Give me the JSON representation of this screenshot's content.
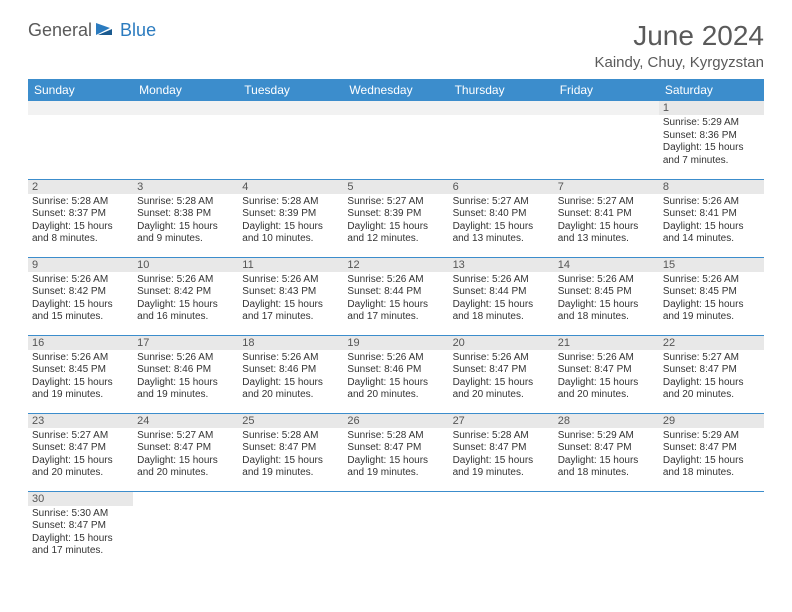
{
  "logo": {
    "general": "General",
    "blue": "Blue"
  },
  "title": "June 2024",
  "location": "Kaindy, Chuy, Kyrgyzstan",
  "colors": {
    "header_bg": "#3c8dcc",
    "header_fg": "#ffffff",
    "daynum_bg": "#e8e8e8",
    "border": "#3c8dcc",
    "text": "#333333",
    "title_color": "#5a5a5a",
    "logo_blue": "#2b7bbf"
  },
  "weekdays": [
    "Sunday",
    "Monday",
    "Tuesday",
    "Wednesday",
    "Thursday",
    "Friday",
    "Saturday"
  ],
  "weeks": [
    [
      null,
      null,
      null,
      null,
      null,
      null,
      {
        "n": "1",
        "sr": "5:29 AM",
        "ss": "8:36 PM",
        "dl": "15 hours and 7 minutes."
      }
    ],
    [
      {
        "n": "2",
        "sr": "5:28 AM",
        "ss": "8:37 PM",
        "dl": "15 hours and 8 minutes."
      },
      {
        "n": "3",
        "sr": "5:28 AM",
        "ss": "8:38 PM",
        "dl": "15 hours and 9 minutes."
      },
      {
        "n": "4",
        "sr": "5:28 AM",
        "ss": "8:39 PM",
        "dl": "15 hours and 10 minutes."
      },
      {
        "n": "5",
        "sr": "5:27 AM",
        "ss": "8:39 PM",
        "dl": "15 hours and 12 minutes."
      },
      {
        "n": "6",
        "sr": "5:27 AM",
        "ss": "8:40 PM",
        "dl": "15 hours and 13 minutes."
      },
      {
        "n": "7",
        "sr": "5:27 AM",
        "ss": "8:41 PM",
        "dl": "15 hours and 13 minutes."
      },
      {
        "n": "8",
        "sr": "5:26 AM",
        "ss": "8:41 PM",
        "dl": "15 hours and 14 minutes."
      }
    ],
    [
      {
        "n": "9",
        "sr": "5:26 AM",
        "ss": "8:42 PM",
        "dl": "15 hours and 15 minutes."
      },
      {
        "n": "10",
        "sr": "5:26 AM",
        "ss": "8:42 PM",
        "dl": "15 hours and 16 minutes."
      },
      {
        "n": "11",
        "sr": "5:26 AM",
        "ss": "8:43 PM",
        "dl": "15 hours and 17 minutes."
      },
      {
        "n": "12",
        "sr": "5:26 AM",
        "ss": "8:44 PM",
        "dl": "15 hours and 17 minutes."
      },
      {
        "n": "13",
        "sr": "5:26 AM",
        "ss": "8:44 PM",
        "dl": "15 hours and 18 minutes."
      },
      {
        "n": "14",
        "sr": "5:26 AM",
        "ss": "8:45 PM",
        "dl": "15 hours and 18 minutes."
      },
      {
        "n": "15",
        "sr": "5:26 AM",
        "ss": "8:45 PM",
        "dl": "15 hours and 19 minutes."
      }
    ],
    [
      {
        "n": "16",
        "sr": "5:26 AM",
        "ss": "8:45 PM",
        "dl": "15 hours and 19 minutes."
      },
      {
        "n": "17",
        "sr": "5:26 AM",
        "ss": "8:46 PM",
        "dl": "15 hours and 19 minutes."
      },
      {
        "n": "18",
        "sr": "5:26 AM",
        "ss": "8:46 PM",
        "dl": "15 hours and 20 minutes."
      },
      {
        "n": "19",
        "sr": "5:26 AM",
        "ss": "8:46 PM",
        "dl": "15 hours and 20 minutes."
      },
      {
        "n": "20",
        "sr": "5:26 AM",
        "ss": "8:47 PM",
        "dl": "15 hours and 20 minutes."
      },
      {
        "n": "21",
        "sr": "5:26 AM",
        "ss": "8:47 PM",
        "dl": "15 hours and 20 minutes."
      },
      {
        "n": "22",
        "sr": "5:27 AM",
        "ss": "8:47 PM",
        "dl": "15 hours and 20 minutes."
      }
    ],
    [
      {
        "n": "23",
        "sr": "5:27 AM",
        "ss": "8:47 PM",
        "dl": "15 hours and 20 minutes."
      },
      {
        "n": "24",
        "sr": "5:27 AM",
        "ss": "8:47 PM",
        "dl": "15 hours and 20 minutes."
      },
      {
        "n": "25",
        "sr": "5:28 AM",
        "ss": "8:47 PM",
        "dl": "15 hours and 19 minutes."
      },
      {
        "n": "26",
        "sr": "5:28 AM",
        "ss": "8:47 PM",
        "dl": "15 hours and 19 minutes."
      },
      {
        "n": "27",
        "sr": "5:28 AM",
        "ss": "8:47 PM",
        "dl": "15 hours and 19 minutes."
      },
      {
        "n": "28",
        "sr": "5:29 AM",
        "ss": "8:47 PM",
        "dl": "15 hours and 18 minutes."
      },
      {
        "n": "29",
        "sr": "5:29 AM",
        "ss": "8:47 PM",
        "dl": "15 hours and 18 minutes."
      }
    ],
    [
      {
        "n": "30",
        "sr": "5:30 AM",
        "ss": "8:47 PM",
        "dl": "15 hours and 17 minutes."
      },
      null,
      null,
      null,
      null,
      null,
      null
    ]
  ],
  "labels": {
    "sunrise": "Sunrise:",
    "sunset": "Sunset:",
    "daylight": "Daylight:"
  }
}
